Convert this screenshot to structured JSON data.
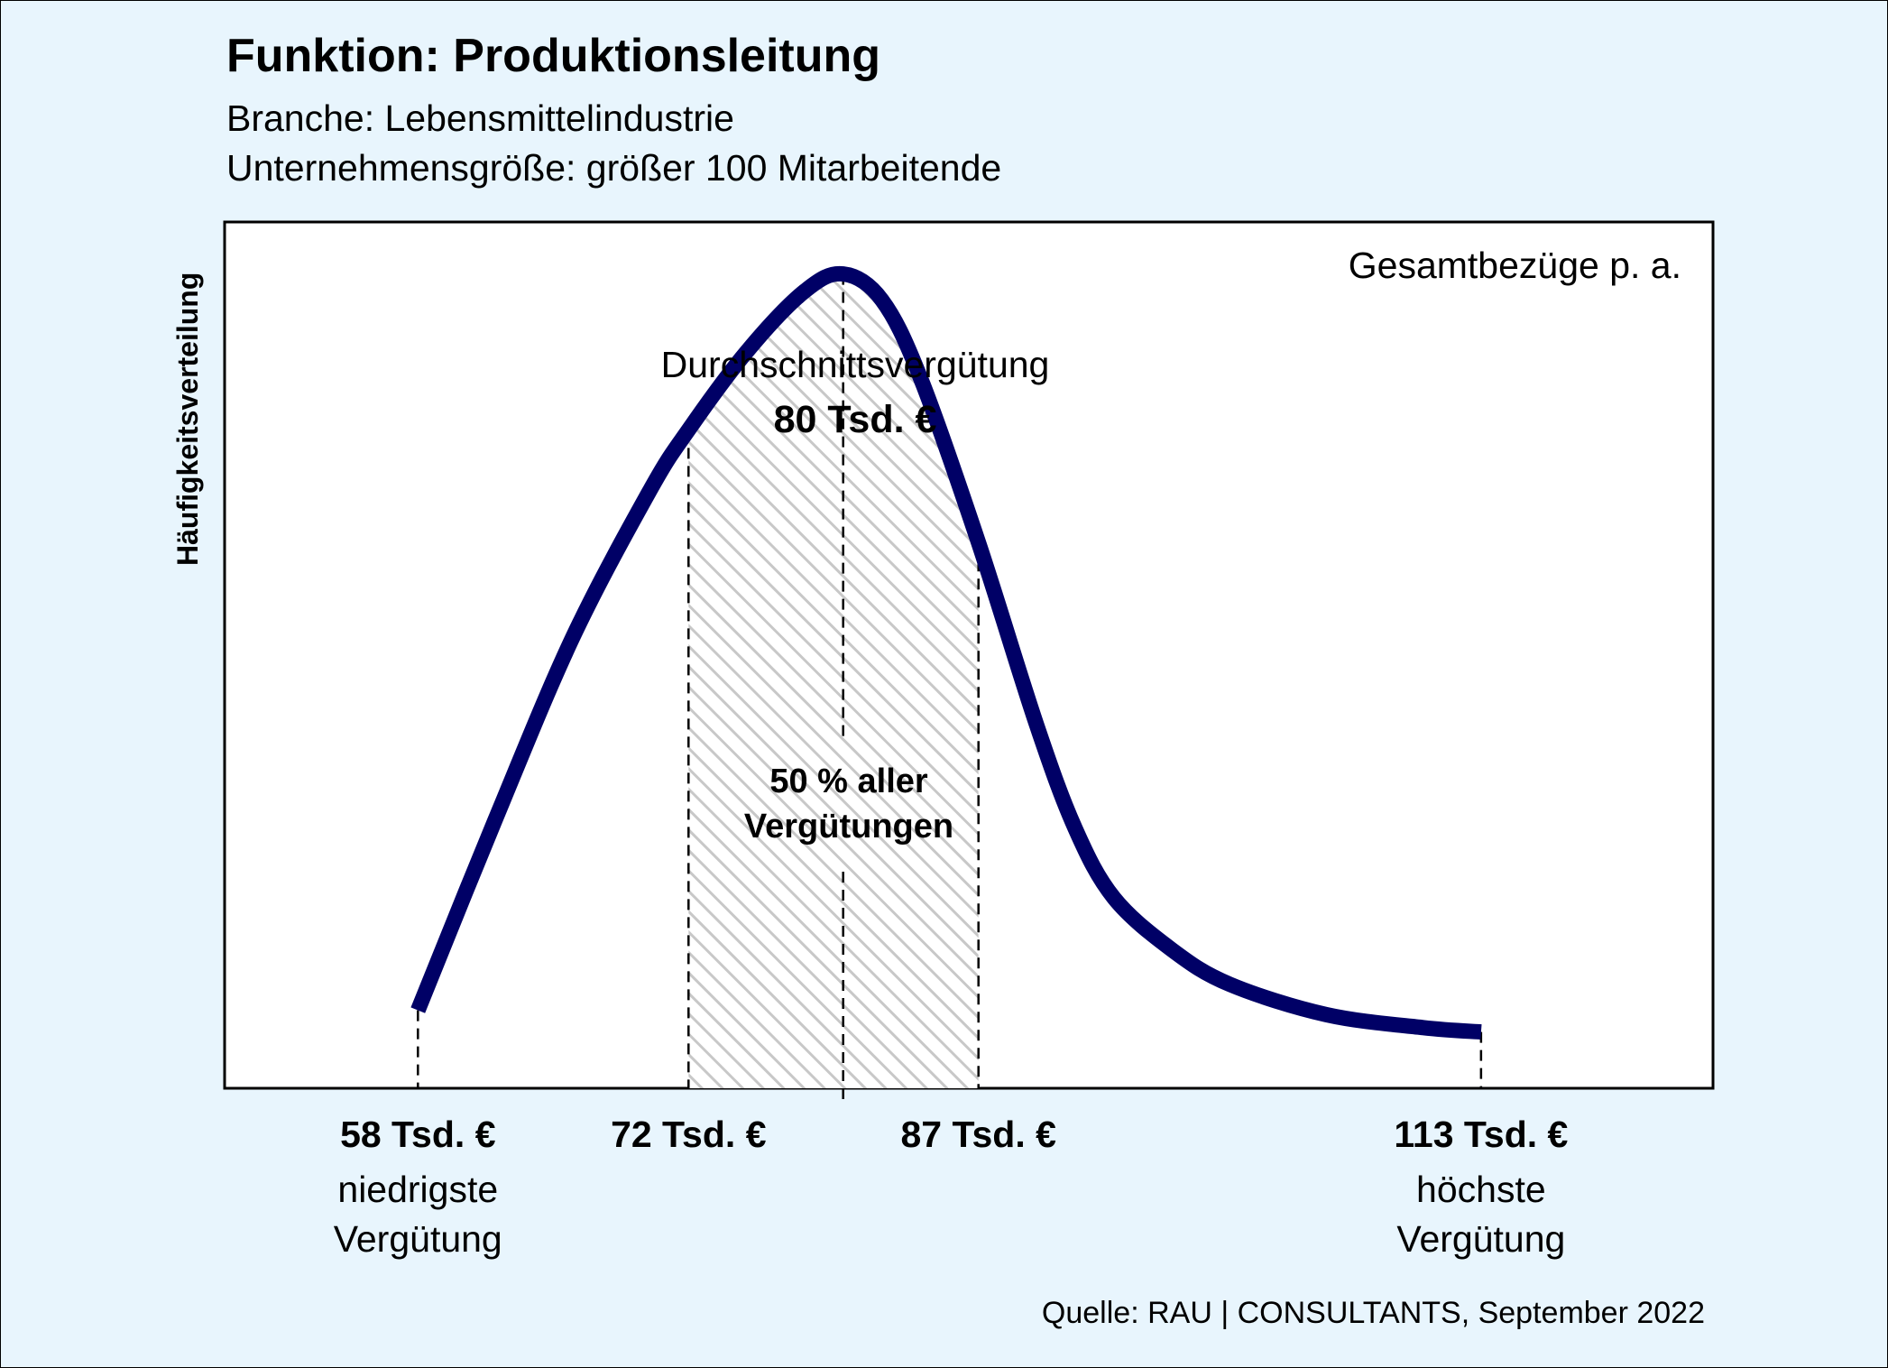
{
  "title": "Funktion: Produktionsleitung",
  "subtitle_1": "Branche: Lebensmittelindustrie",
  "subtitle_2": "Unternehmensgröße: größer 100 Mitarbeitende",
  "source": "Quelle: RAU | CONSULTANTS, September 2022",
  "colors": {
    "background": "#e8f5fd",
    "curve": "#000066",
    "hatch": "#c8c8c8"
  },
  "chart_data": {
    "type": "area",
    "ylabel": "Häufigkeitsverteilung",
    "corner_label": "Gesamtbezüge p. a.",
    "x_unit": "Tsd. €",
    "xlim": [
      48,
      125
    ],
    "ylim": [
      0,
      1
    ],
    "curve": [
      {
        "x": 58,
        "y": 0.09
      },
      {
        "x": 62,
        "y": 0.31
      },
      {
        "x": 66,
        "y": 0.52
      },
      {
        "x": 70,
        "y": 0.69
      },
      {
        "x": 72,
        "y": 0.76
      },
      {
        "x": 75,
        "y": 0.85
      },
      {
        "x": 78,
        "y": 0.92
      },
      {
        "x": 80,
        "y": 0.94
      },
      {
        "x": 82,
        "y": 0.91
      },
      {
        "x": 84,
        "y": 0.82
      },
      {
        "x": 87,
        "y": 0.63
      },
      {
        "x": 90,
        "y": 0.42
      },
      {
        "x": 92,
        "y": 0.3
      },
      {
        "x": 94,
        "y": 0.22
      },
      {
        "x": 97,
        "y": 0.16
      },
      {
        "x": 100,
        "y": 0.12
      },
      {
        "x": 105,
        "y": 0.085
      },
      {
        "x": 110,
        "y": 0.07
      },
      {
        "x": 113,
        "y": 0.065
      }
    ],
    "average": {
      "x": 80,
      "label": "Durchschnittsvergütung",
      "value_label": "80 Tsd. €"
    },
    "band": {
      "from": 72,
      "to": 87,
      "label_1": "50 % aller",
      "label_2": "Vergütungen"
    },
    "ticks": [
      {
        "x": 58,
        "label": "58 Tsd. €",
        "caption_1": "niedrigste",
        "caption_2": "Vergütung"
      },
      {
        "x": 72,
        "label": "72 Tsd. €"
      },
      {
        "x": 87,
        "label": "87 Tsd. €"
      },
      {
        "x": 113,
        "label": "113 Tsd. €",
        "caption_1": "höchste",
        "caption_2": "Vergütung"
      }
    ]
  }
}
